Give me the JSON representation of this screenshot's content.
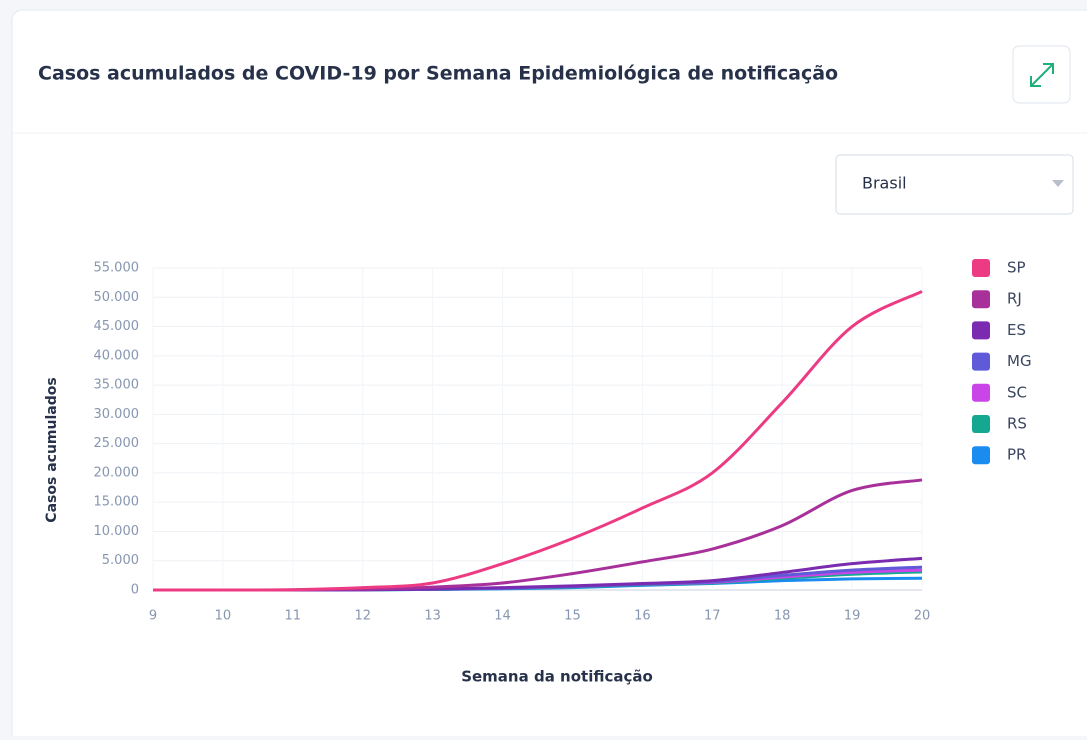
{
  "chart_data": {
    "type": "line",
    "title": "Casos acumulados de COVID-19 por Semana Epidemiológica de notificação",
    "dropdown": "Brasil",
    "xlabel": "Semana da notificação",
    "ylabel": "Casos acumulados",
    "x": [
      9,
      10,
      11,
      12,
      13,
      14,
      15,
      16,
      17,
      18,
      19,
      20
    ],
    "xlim": [
      9,
      20
    ],
    "xticks": [
      9,
      10,
      11,
      12,
      13,
      14,
      15,
      16,
      17,
      18,
      19,
      20
    ],
    "ylim": [
      0,
      55000
    ],
    "yticks": [
      0,
      {
        "value": 5000,
        "label": "5.000"
      },
      {
        "value": 10000,
        "label": "10.000"
      },
      {
        "value": 15000,
        "label": "15.000"
      },
      {
        "value": 20000,
        "label": "20.000"
      },
      {
        "value": 25000,
        "label": "25.000"
      },
      {
        "value": 30000,
        "label": "30.000"
      },
      {
        "value": 35000,
        "label": "35.000"
      },
      {
        "value": 40000,
        "label": "40.000"
      },
      {
        "value": 45000,
        "label": "45.000"
      },
      {
        "value": 50000,
        "label": "50.000"
      },
      {
        "value": 55000,
        "label": "55.000"
      }
    ],
    "grid": true,
    "legend": "right",
    "series": [
      {
        "name": "SP",
        "color": "#ec3b83",
        "values": [
          0,
          0,
          50,
          400,
          1200,
          4500,
          8800,
          14000,
          20000,
          32000,
          45000,
          51000
        ]
      },
      {
        "name": "RJ",
        "color": "#a8309a",
        "values": [
          0,
          0,
          20,
          150,
          500,
          1200,
          2800,
          4800,
          7000,
          11000,
          17000,
          18800
        ]
      },
      {
        "name": "ES",
        "color": "#7a2bb0",
        "values": [
          0,
          0,
          0,
          50,
          150,
          400,
          700,
          1100,
          1600,
          3000,
          4500,
          5400
        ]
      },
      {
        "name": "MG",
        "color": "#5e5ad8",
        "values": [
          0,
          0,
          0,
          50,
          150,
          300,
          600,
          1000,
          1400,
          2500,
          3400,
          3900
        ]
      },
      {
        "name": "SC",
        "color": "#c945e8",
        "values": [
          0,
          0,
          0,
          50,
          150,
          300,
          600,
          1000,
          1300,
          2200,
          3000,
          3400
        ]
      },
      {
        "name": "RS",
        "color": "#14a890",
        "values": [
          0,
          0,
          0,
          30,
          100,
          250,
          500,
          900,
          1200,
          2000,
          2700,
          3100
        ]
      },
      {
        "name": "PR",
        "color": "#1a8cf0",
        "values": [
          0,
          0,
          0,
          30,
          100,
          200,
          400,
          800,
          1100,
          1600,
          1900,
          2000
        ]
      }
    ]
  }
}
